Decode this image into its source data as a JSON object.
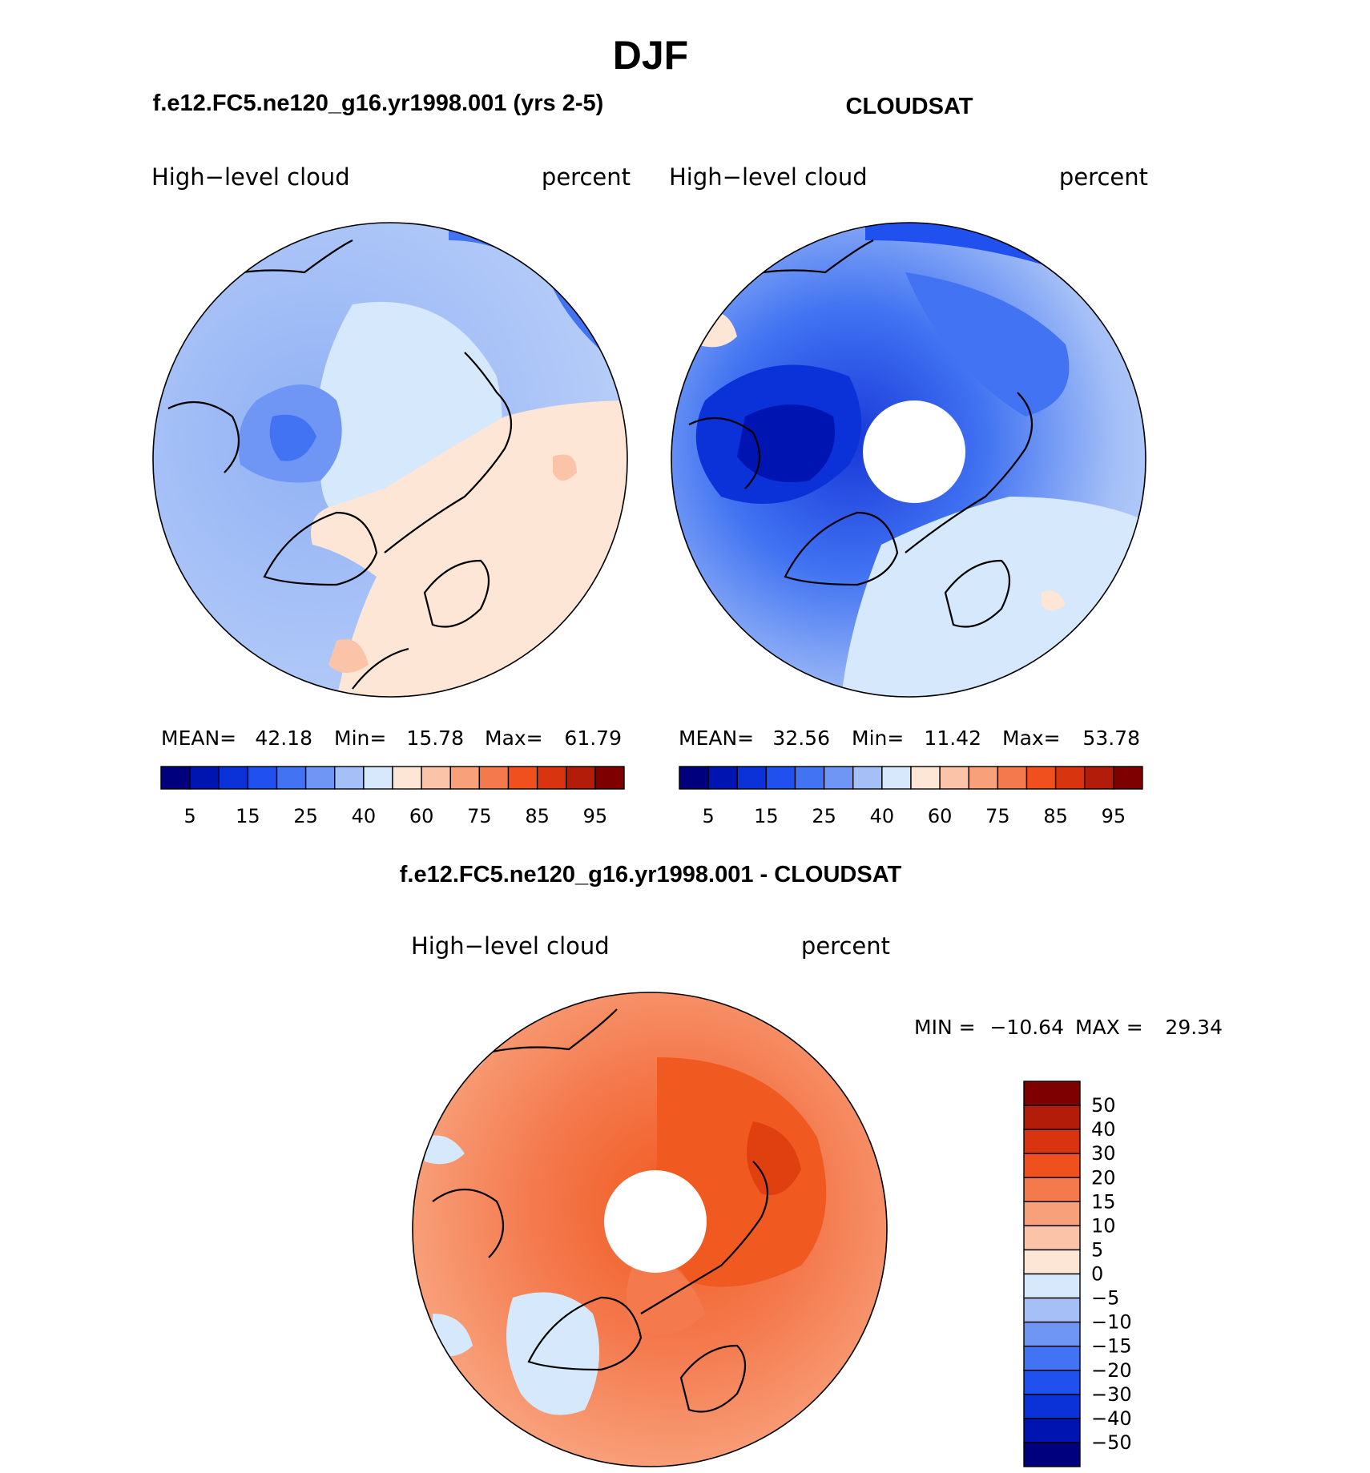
{
  "figure": {
    "title": "DJF"
  },
  "panels": [
    {
      "id": "model",
      "title": "f.e12.FC5.ne120_g16.yr1998.001 (yrs 2-5)",
      "variable": "High−level cloud",
      "units": "percent",
      "stats": {
        "mean_label": "MEAN=",
        "mean": "42.18",
        "min_label": "Min=",
        "min": "15.78",
        "max_label": "Max=",
        "max": "61.79"
      },
      "has_polar_hole": false
    },
    {
      "id": "obs",
      "title": "CLOUDSAT",
      "variable": "High−level cloud",
      "units": "percent",
      "stats": {
        "mean_label": "MEAN=",
        "mean": "32.56",
        "min_label": "Min=",
        "min": "11.42",
        "max_label": "Max=",
        "max": "53.78"
      },
      "has_polar_hole": true
    },
    {
      "id": "diff",
      "title": "f.e12.FC5.ne120_g16.yr1998.001 - CLOUDSAT",
      "variable": "High−level cloud",
      "units": "percent",
      "stats_text": {
        "min_label": "MIN =",
        "min": "−10.64",
        "max_label": "MAX =",
        "max": "29.34"
      },
      "has_polar_hole": true
    }
  ],
  "colorbars": {
    "absolute": {
      "orientation": "horizontal",
      "colors": [
        "#00007f",
        "#0014b2",
        "#0a32d8",
        "#2050ee",
        "#4173f2",
        "#7096f5",
        "#a5c0f7",
        "#d6e8fb",
        "#fde6d6",
        "#fbc4a8",
        "#f8a07a",
        "#f47a4e",
        "#f0501e",
        "#d83410",
        "#b21c08",
        "#7f0000"
      ],
      "tick_labels": [
        "5",
        "15",
        "25",
        "40",
        "60",
        "75",
        "85",
        "95"
      ]
    },
    "difference": {
      "orientation": "vertical",
      "colors_top_to_bottom": [
        "#7f0000",
        "#b21c08",
        "#d83410",
        "#f0501e",
        "#f47a4e",
        "#f8a07a",
        "#fbc4a8",
        "#fde6d6",
        "#d6e8fb",
        "#a5c0f7",
        "#7096f5",
        "#4173f2",
        "#2050ee",
        "#0a32d8",
        "#0014b2",
        "#00007f"
      ],
      "tick_labels": [
        "50",
        "40",
        "30",
        "20",
        "15",
        "10",
        "5",
        "0",
        "−5",
        "−10",
        "−15",
        "−20",
        "−30",
        "−40",
        "−50"
      ]
    }
  }
}
